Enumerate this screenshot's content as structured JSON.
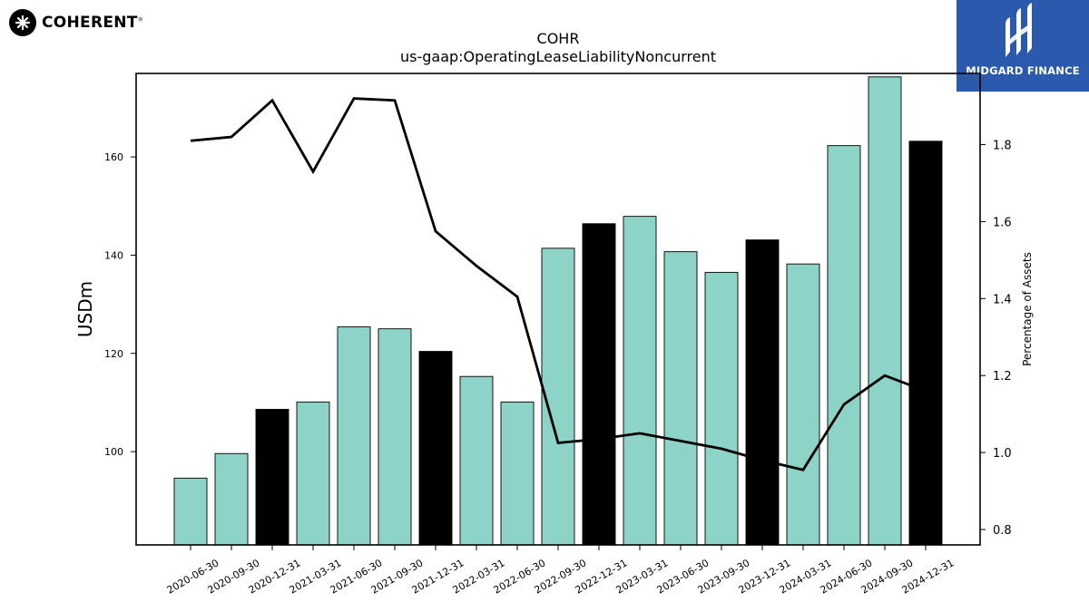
{
  "branding": {
    "left_logo_text": "COHERENT",
    "left_logo_mark": "®",
    "right_logo_text": "MIDGARD FINANCE"
  },
  "colors": {
    "bar_fill": "#8dd3c7",
    "bar_fill_q4": "#000000",
    "line": "#000000",
    "brand_blue": "#2a59ad"
  },
  "chart_data": {
    "type": "bar",
    "title": "COHR",
    "subtitle": "us-gaap:OperatingLeaseLiabilityNoncurrent",
    "ylabel": "USDm",
    "y2label": "Percentage of Assets",
    "ylim": [
      81,
      177
    ],
    "y2lim": [
      0.76,
      1.985
    ],
    "yticks": [
      100,
      120,
      140,
      160
    ],
    "y2ticks": [
      0.8,
      1.0,
      1.2,
      1.4,
      1.6,
      1.8
    ],
    "grid": false,
    "categories": [
      "2020-06-30",
      "2020-09-30",
      "2020-12-31",
      "2021-03-31",
      "2021-06-30",
      "2021-09-30",
      "2021-12-31",
      "2022-03-31",
      "2022-06-30",
      "2022-09-30",
      "2022-12-31",
      "2023-03-31",
      "2023-06-30",
      "2023-09-30",
      "2023-12-31",
      "2024-03-31",
      "2024-06-30",
      "2024-09-30",
      "2024-12-31"
    ],
    "series": [
      {
        "type": "bar",
        "values": [
          94.6,
          99.6,
          108.6,
          110.1,
          125.4,
          125.0,
          120.4,
          115.3,
          110.1,
          141.4,
          146.4,
          147.9,
          140.7,
          136.5,
          143.1,
          138.2,
          162.3,
          176.3,
          163.2
        ],
        "highlight": [
          false,
          false,
          true,
          false,
          false,
          false,
          true,
          false,
          false,
          false,
          true,
          false,
          false,
          false,
          true,
          false,
          false,
          false,
          true
        ]
      },
      {
        "type": "line",
        "axis": "right",
        "values": [
          1.81,
          1.82,
          1.915,
          1.73,
          1.92,
          1.915,
          1.575,
          1.485,
          1.405,
          1.025,
          1.035,
          1.05,
          1.03,
          1.01,
          0.98,
          0.955,
          1.125,
          1.2,
          1.16
        ]
      }
    ]
  }
}
